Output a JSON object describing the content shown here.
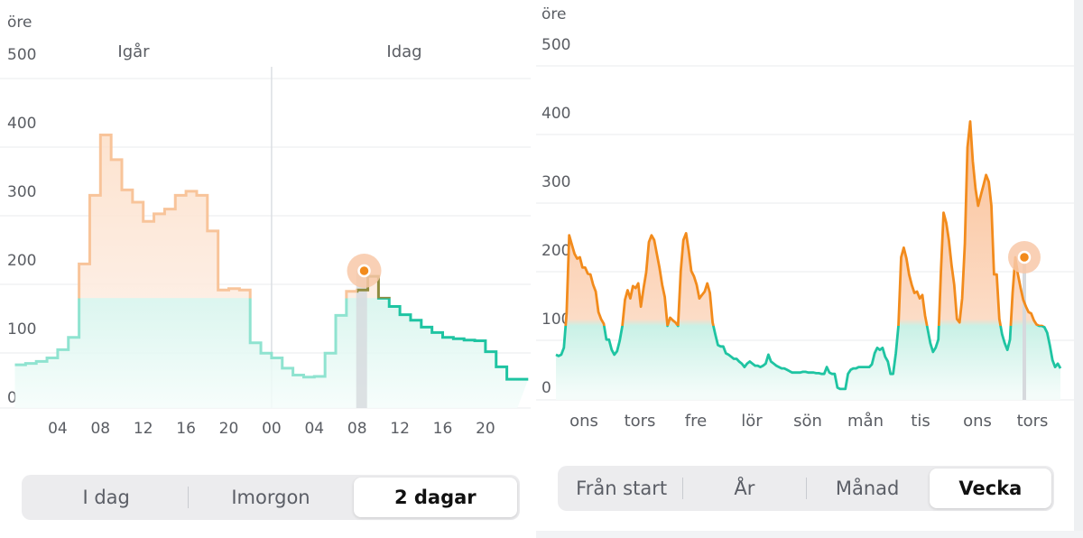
{
  "colors": {
    "orange": "#f28b1c",
    "orange_light": "#f8c49a",
    "teal": "#1fc4a2",
    "teal_light": "#8fe3d0",
    "grid": "#e9ebee",
    "axis_text": "#5a5d63"
  },
  "left": {
    "unit_label": "öre",
    "day_labels": [
      "Igår",
      "Idag"
    ],
    "segments": [
      {
        "label": "I dag",
        "active": false
      },
      {
        "label": "Imorgon",
        "active": false
      },
      {
        "label": "2 dagar",
        "active": true
      }
    ]
  },
  "right": {
    "unit_label": "öre",
    "segments": [
      {
        "label": "Från start",
        "active": false
      },
      {
        "label": "År",
        "active": false
      },
      {
        "label": "Månad",
        "active": false
      },
      {
        "label": "Vecka",
        "active": true
      }
    ]
  },
  "chart_data": [
    {
      "type": "area",
      "step": true,
      "ylabel": "öre",
      "ylim": [
        0,
        500
      ],
      "y_ticks": [
        0,
        100,
        200,
        300,
        400,
        500
      ],
      "x_tick_labels": [
        "04",
        "08",
        "12",
        "16",
        "20",
        "00",
        "04",
        "08",
        "12",
        "16",
        "20"
      ],
      "x_ticks_hours": [
        4,
        8,
        12,
        16,
        20,
        24,
        28,
        32,
        36,
        40,
        44
      ],
      "divider_hour": 24,
      "highlight_hour": 32.5,
      "highlight_value": 200,
      "threshold": 160,
      "hours": [
        0,
        1,
        2,
        3,
        4,
        5,
        6,
        7,
        8,
        9,
        10,
        11,
        12,
        13,
        14,
        15,
        16,
        17,
        18,
        19,
        20,
        21,
        22,
        23,
        24,
        25,
        26,
        27,
        28,
        29,
        30,
        31,
        32,
        33,
        34,
        35,
        36,
        37,
        38,
        39,
        40,
        41,
        42,
        43,
        44,
        45,
        46,
        47
      ],
      "values": [
        63,
        65,
        68,
        73,
        85,
        103,
        210,
        310,
        398,
        362,
        318,
        300,
        272,
        283,
        290,
        310,
        316,
        310,
        258,
        172,
        174,
        172,
        95,
        80,
        73,
        58,
        48,
        45,
        46,
        80,
        135,
        170,
        172,
        192,
        160,
        148,
        136,
        128,
        118,
        110,
        103,
        101,
        99,
        98,
        82,
        60,
        42,
        42
      ]
    },
    {
      "type": "area",
      "ylabel": "öre",
      "ylim": [
        0,
        500
      ],
      "y_ticks": [
        0,
        100,
        200,
        300,
        400,
        500
      ],
      "x_tick_labels": [
        "ons",
        "tors",
        "fre",
        "lör",
        "sön",
        "mån",
        "tis",
        "ons",
        "tors"
      ],
      "threshold": 100,
      "highlight_value": 200,
      "values": [
        58,
        56,
        58,
        68,
        118,
        232,
        218,
        205,
        198,
        200,
        185,
        185,
        176,
        175,
        160,
        150,
        120,
        110,
        103,
        80,
        80,
        65,
        58,
        63,
        78,
        100,
        138,
        152,
        140,
        158,
        155,
        162,
        128,
        155,
        178,
        222,
        232,
        225,
        205,
        185,
        160,
        142,
        100,
        112,
        108,
        105,
        100,
        180,
        225,
        235,
        210,
        180,
        172,
        160,
        140,
        145,
        150,
        162,
        148,
        105,
        88,
        72,
        70,
        70,
        60,
        58,
        55,
        52,
        52,
        48,
        45,
        40,
        45,
        48,
        45,
        42,
        42,
        40,
        42,
        45,
        58,
        48,
        45,
        42,
        40,
        38,
        38,
        36,
        34,
        32,
        32,
        32,
        32,
        33,
        33,
        32,
        32,
        32,
        31,
        31,
        30,
        30,
        40,
        32,
        30,
        30,
        10,
        8,
        8,
        8,
        30,
        36,
        38,
        38,
        40,
        40,
        40,
        40,
        40,
        44,
        60,
        68,
        65,
        68,
        55,
        48,
        30,
        30,
        60,
        100,
        200,
        214,
        198,
        175,
        160,
        148,
        150,
        140,
        145,
        115,
        95,
        75,
        62,
        68,
        80,
        180,
        265,
        250,
        225,
        188,
        160,
        110,
        105,
        140,
        220,
        360,
        398,
        340,
        300,
        275,
        290,
        305,
        320,
        310,
        275,
        175,
        175,
        110,
        88,
        75,
        65,
        80,
        148,
        200,
        175,
        155,
        138,
        128,
        120,
        118,
        108,
        102,
        100,
        100,
        98,
        90,
        72,
        50,
        40,
        45,
        38
      ]
    }
  ]
}
